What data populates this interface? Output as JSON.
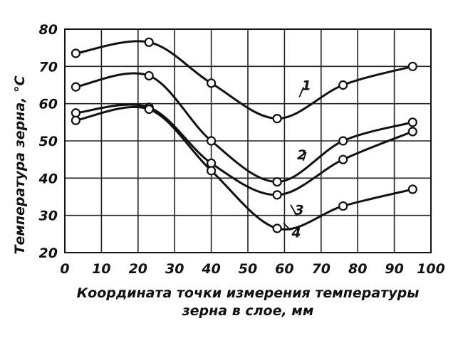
{
  "chart_data": {
    "type": "line",
    "xlabel": "Координата точки измерения температуры зерна в слое, мм",
    "xlabel_lines": [
      "Координата точки измерения температуры",
      "зерна в слое, мм"
    ],
    "ylabel": "Температура зерна, °С",
    "xlim": [
      0,
      100
    ],
    "ylim": [
      20,
      80
    ],
    "xticks": [
      "0",
      "10",
      "20",
      "30",
      "40",
      "50",
      "60",
      "70",
      "80",
      "90",
      "100"
    ],
    "yticks": [
      "20",
      "30",
      "40",
      "50",
      "60",
      "70",
      "80"
    ],
    "grid": true,
    "series": [
      {
        "name": "1",
        "x": [
          3,
          23,
          40,
          58,
          76,
          95
        ],
        "y": [
          73.5,
          76.5,
          65.5,
          56,
          65,
          70
        ]
      },
      {
        "name": "2",
        "x": [
          3,
          23,
          40,
          58,
          76,
          95
        ],
        "y": [
          64.5,
          67.5,
          50,
          39,
          50,
          55
        ]
      },
      {
        "name": "3",
        "x": [
          3,
          23,
          40,
          58,
          76,
          95
        ],
        "y": [
          57.5,
          59,
          44,
          35.5,
          45,
          52.5
        ]
      },
      {
        "name": "4",
        "x": [
          3,
          23,
          40,
          58,
          76,
          95
        ],
        "y": [
          55.5,
          58.5,
          42,
          26.5,
          32.5,
          37
        ]
      }
    ]
  }
}
